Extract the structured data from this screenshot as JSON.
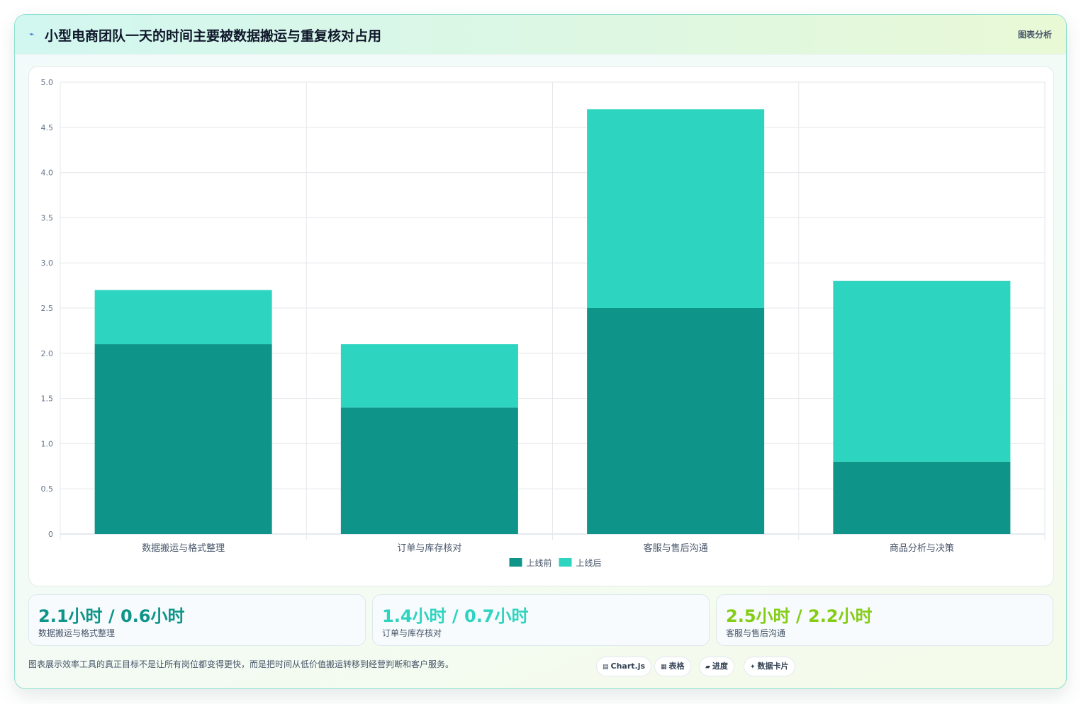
{
  "header": {
    "title": "小型电商团队一天的时间主要被数据搬运与重复核对占用",
    "tag": "图表分析",
    "icon": "sparkline-icon"
  },
  "colors": {
    "before": "#0e9488",
    "after": "#2dd4bf",
    "stat_1": "#0e9488",
    "stat_2": "#2dd4bf",
    "stat_3": "#84cc16"
  },
  "chart_data": {
    "type": "bar",
    "stacked": true,
    "title": "",
    "xlabel": "",
    "ylabel": "",
    "categories": [
      "数据搬运与格式整理",
      "订单与库存核对",
      "客服与售后沟通",
      "商品分析与决策"
    ],
    "series": [
      {
        "name": "上线前",
        "values": [
          2.1,
          1.4,
          2.5,
          0.8
        ]
      },
      {
        "name": "上线后",
        "values": [
          0.6,
          0.7,
          2.2,
          2.0
        ]
      }
    ],
    "ylim": [
      0,
      5
    ],
    "yticks": [
      "0",
      "0.5",
      "1.0",
      "1.5",
      "2.0",
      "2.5",
      "3.0",
      "3.5",
      "4.0",
      "4.5",
      "5.0"
    ],
    "grid": true,
    "legend": "bottom-center"
  },
  "stats": [
    {
      "value": "2.1小时 / 0.6小时",
      "label": "数据搬运与格式整理"
    },
    {
      "value": "1.4小时 / 0.7小时",
      "label": "订单与库存核对"
    },
    {
      "value": "2.5小时 / 2.2小时",
      "label": "客服与售后沟通"
    }
  ],
  "footer": {
    "note": "图表展示效率工具的真正目标不是让所有岗位都变得更快，而是把时间从低价值搬运转移到经营判断和客户服务。",
    "chips": [
      {
        "icon": "chart-icon",
        "glyph": "▤",
        "label": "Chart.js"
      },
      {
        "icon": "table-icon",
        "glyph": "▦",
        "label": "表格"
      },
      {
        "icon": "progress-icon",
        "glyph": "▰",
        "label": "进度"
      },
      {
        "icon": "data-card-icon",
        "glyph": "✦",
        "label": "数据卡片"
      }
    ]
  }
}
